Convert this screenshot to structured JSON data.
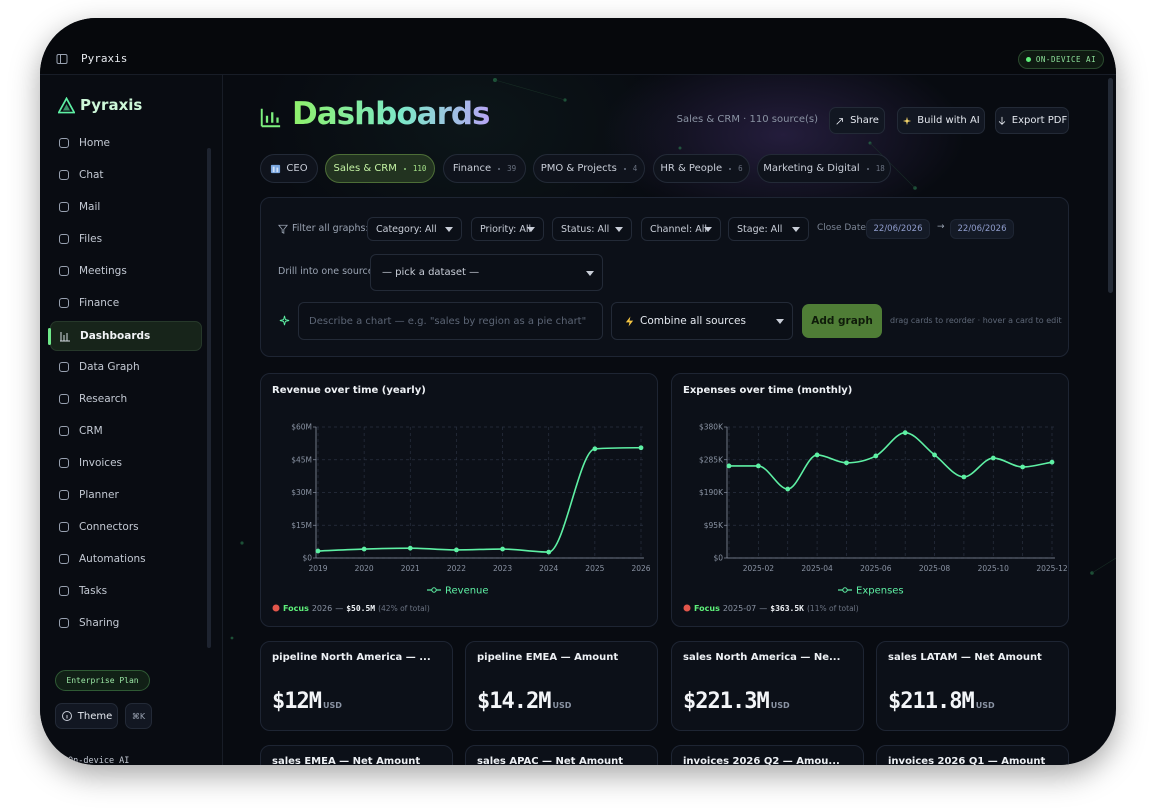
{
  "app": {
    "name": "Pyraxis",
    "badge": "ON-DEVICE AI"
  },
  "sidebar": {
    "brand": "Pyraxis",
    "nav": [
      {
        "label": "Home"
      },
      {
        "label": "Chat"
      },
      {
        "label": "Mail"
      },
      {
        "label": "Files"
      },
      {
        "label": "Meetings"
      },
      {
        "label": "Finance"
      },
      {
        "label": "Dashboards",
        "active": true
      },
      {
        "label": "Data Graph"
      },
      {
        "label": "Research"
      },
      {
        "label": "CRM"
      },
      {
        "label": "Invoices"
      },
      {
        "label": "Planner"
      },
      {
        "label": "Connectors"
      },
      {
        "label": "Automations"
      },
      {
        "label": "Tasks"
      },
      {
        "label": "Sharing"
      }
    ],
    "plan": "Enterprise Plan",
    "theme": "Theme",
    "shortcut": "⌘K",
    "status": "On-device AI"
  },
  "header": {
    "title": "Dashboards",
    "sources": "Sales & CRM · 110 source(s)",
    "actions": [
      "Share",
      "Build with AI",
      "Export PDF"
    ]
  },
  "tabs": [
    {
      "label": "CEO"
    },
    {
      "label": "Sales & CRM",
      "count": 110,
      "active": true
    },
    {
      "label": "Finance",
      "count": 39
    },
    {
      "label": "PMO & Projects",
      "count": 4
    },
    {
      "label": "HR & People",
      "count": 6
    },
    {
      "label": "Marketing & Digital",
      "count": 18
    }
  ],
  "filters": {
    "label": "Filter all graphs:",
    "selects": [
      "Category: All",
      "Priority: All",
      "Status: All",
      "Channel: All",
      "Stage: All"
    ],
    "date_label": "Close Date",
    "date_from": "22/06/2026",
    "arrow": "→",
    "date_to": "22/06/2026"
  },
  "drill": {
    "label": "Drill into one source:",
    "placeholder": "— pick a dataset —"
  },
  "composer": {
    "placeholder": "Describe a chart — e.g. \"sales by region as a pie chart\"",
    "combine": "Combine all sources",
    "button": "Add graph",
    "hint": "drag cards to reorder · hover a card to edit"
  },
  "chart_data": [
    {
      "type": "line",
      "title": "Revenue over time (yearly)",
      "categories": [
        "2019",
        "2020",
        "2021",
        "2022",
        "2023",
        "2024",
        "2025",
        "2026"
      ],
      "series": [
        {
          "name": "Revenue",
          "color": "#5ef0a4",
          "values": [
            3.2,
            4.1,
            4.5,
            3.7,
            4.1,
            2.7,
            50.0,
            50.5
          ]
        }
      ],
      "ylim": [
        0,
        60
      ],
      "yticks": [
        {
          "value": 0,
          "label": "$0"
        },
        {
          "value": 15,
          "label": "$15M"
        },
        {
          "value": 30,
          "label": "$30M"
        },
        {
          "value": 45,
          "label": "$45M"
        },
        {
          "value": 60,
          "label": "$60M"
        }
      ],
      "grid": true,
      "focus": {
        "label": "Focus",
        "period": "2026",
        "separator": "—",
        "value": "$50.5M",
        "share": "(42% of total)"
      }
    },
    {
      "type": "line",
      "title": "Expenses over time (monthly)",
      "categories": [
        null,
        "2025-02",
        null,
        "2025-04",
        null,
        "2025-06",
        null,
        "2025-08",
        null,
        "2025-10",
        null,
        "2025-12"
      ],
      "series": [
        {
          "name": "Expenses",
          "color": "#5ef0a4",
          "values": [
            267,
            267,
            200,
            299,
            276,
            296,
            363.5,
            299,
            235,
            290,
            264,
            278
          ]
        }
      ],
      "ylim": [
        0,
        380
      ],
      "yticks": [
        {
          "value": 0,
          "label": "$0"
        },
        {
          "value": 95,
          "label": "$95K"
        },
        {
          "value": 190,
          "label": "$190K"
        },
        {
          "value": 285,
          "label": "$285K"
        },
        {
          "value": 380,
          "label": "$380K"
        }
      ],
      "grid": true,
      "focus": {
        "label": "Focus",
        "period": "2025-07",
        "separator": "—",
        "value": "$363.5K",
        "share": "(11% of total)"
      }
    }
  ],
  "kpis": [
    {
      "title": "pipeline North America — ...",
      "value": "$12M",
      "unit": "USD"
    },
    {
      "title": "pipeline EMEA — Amount",
      "value": "$14.2M",
      "unit": "USD"
    },
    {
      "title": "sales North America — Ne...",
      "value": "$221.3M",
      "unit": "USD"
    },
    {
      "title": "sales LATAM — Net Amount",
      "value": "$211.8M",
      "unit": "USD"
    },
    {
      "title": "sales EMEA — Net Amount"
    },
    {
      "title": "sales APAC — Net Amount"
    },
    {
      "title": "invoices 2026 Q2 — Amou..."
    },
    {
      "title": "invoices 2026 Q1 — Amount"
    }
  ]
}
